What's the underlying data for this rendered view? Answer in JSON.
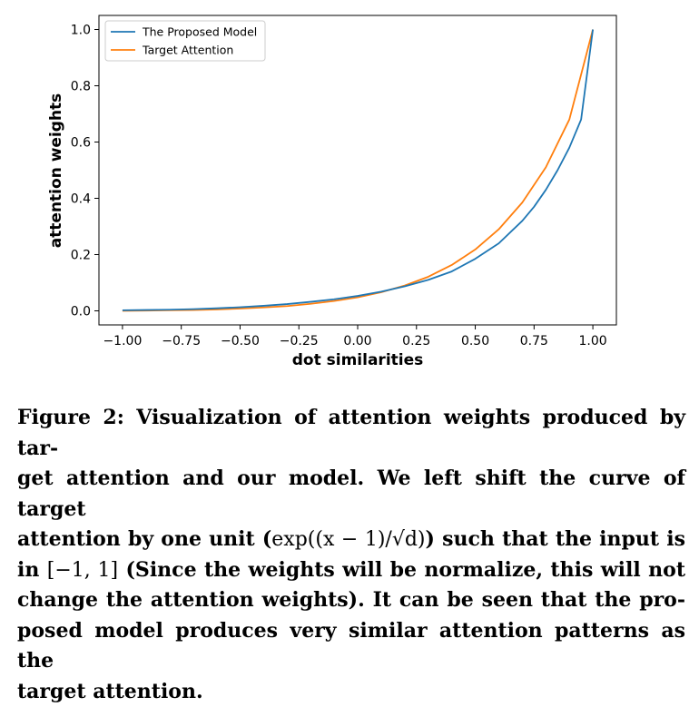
{
  "chart_data": {
    "type": "line",
    "xlabel": "dot similarities",
    "ylabel": "attention weights",
    "xlim": [
      -1.1,
      1.1
    ],
    "ylim": [
      -0.05,
      1.05
    ],
    "xticks": [
      "−1.00",
      "−0.75",
      "−0.50",
      "−0.25",
      "0.00",
      "0.25",
      "0.50",
      "0.75",
      "1.00"
    ],
    "yticks": [
      "0.0",
      "0.2",
      "0.4",
      "0.6",
      "0.8",
      "1.0"
    ],
    "grid": false,
    "legend_position": "top-left",
    "series": [
      {
        "name": "The Proposed Model",
        "color": "#1f77b4",
        "x": [
          -1.0,
          -0.9,
          -0.8,
          -0.7,
          -0.6,
          -0.5,
          -0.4,
          -0.3,
          -0.2,
          -0.1,
          0.0,
          0.1,
          0.2,
          0.3,
          0.4,
          0.5,
          0.6,
          0.7,
          0.75,
          0.8,
          0.85,
          0.9,
          0.95,
          1.0
        ],
        "y": [
          0.002,
          0.003,
          0.004,
          0.006,
          0.009,
          0.013,
          0.018,
          0.024,
          0.032,
          0.041,
          0.053,
          0.068,
          0.087,
          0.11,
          0.14,
          0.185,
          0.24,
          0.32,
          0.37,
          0.43,
          0.5,
          0.58,
          0.68,
          1.0
        ]
      },
      {
        "name": "Target Attention",
        "color": "#ff7f0e",
        "x": [
          -1.0,
          -0.9,
          -0.8,
          -0.7,
          -0.6,
          -0.5,
          -0.4,
          -0.3,
          -0.2,
          -0.1,
          0.0,
          0.1,
          0.2,
          0.3,
          0.4,
          0.5,
          0.6,
          0.7,
          0.8,
          0.9,
          1.0
        ],
        "y": [
          0.0,
          0.001,
          0.002,
          0.003,
          0.005,
          0.008,
          0.012,
          0.017,
          0.025,
          0.035,
          0.048,
          0.066,
          0.09,
          0.121,
          0.163,
          0.218,
          0.29,
          0.385,
          0.51,
          0.68,
          1.0
        ]
      }
    ]
  },
  "caption": {
    "lines": [
      "Figure 2: Visualization of attention weights produced by tar-",
      "get attention and our model. We left shift the curve of target",
      "attention by one unit (",
      "exp((x − 1)/√d)",
      ") such that the input is",
      "in ",
      "[−1, 1]",
      " (Since the weights will be normalize, this will not",
      "change the attention weights). It can be seen that the pro-",
      "posed model produces very similar attention patterns as the",
      "target attention."
    ]
  }
}
